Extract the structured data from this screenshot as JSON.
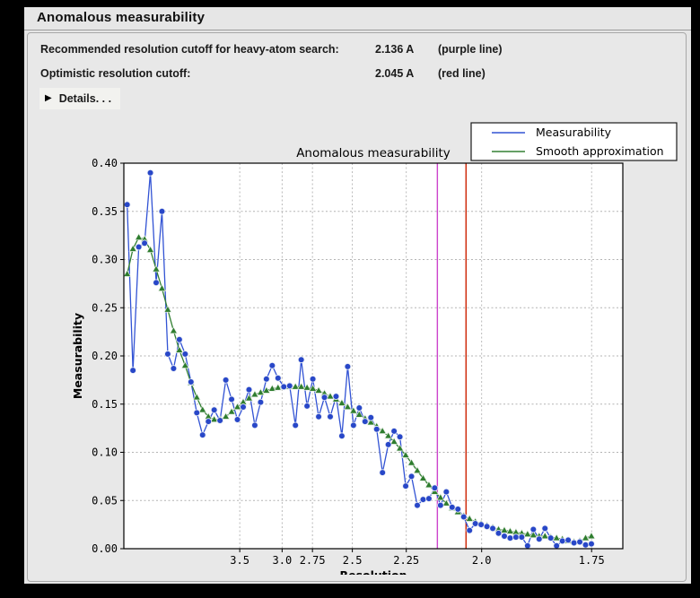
{
  "window": {
    "heading": "Anomalous measurability"
  },
  "info": {
    "rows": [
      {
        "label": "Recommended resolution cutoff for heavy-atom search:",
        "value": "2.136 A",
        "note": "(purple line)"
      },
      {
        "label": "Optimistic resolution cutoff:",
        "value": "2.045 A",
        "note": "(red line)"
      }
    ],
    "details": {
      "arrow": "▶",
      "label": "Details. . ."
    }
  },
  "colors": {
    "panel_bg": "#e6e6e6",
    "plot_bg": "#ffffff",
    "grid": "#b3b3b3",
    "measurability_line": "#3253d4",
    "measurability_marker": "#2847c8",
    "smooth_line": "#338033",
    "smooth_marker": "#2e7d2e",
    "purple_vline": "#cc44cc",
    "red_vline": "#cc2200",
    "frame": "#000000"
  },
  "chart_data": {
    "type": "line",
    "title": "Anomalous measurability",
    "xlabel": "Resolution",
    "ylabel": "Measurability",
    "x_axis_transform": "1/d^2",
    "x_ticks": [
      {
        "label": "3.5",
        "d": 3.5
      },
      {
        "label": "3.0",
        "d": 3.0
      },
      {
        "label": "2.75",
        "d": 2.75
      },
      {
        "label": "2.5",
        "d": 2.5
      },
      {
        "label": "2.25",
        "d": 2.25
      },
      {
        "label": "2.0",
        "d": 2.0
      },
      {
        "label": "1.75",
        "d": 1.75
      }
    ],
    "y_ticks": [
      "0.00",
      "0.05",
      "0.10",
      "0.15",
      "0.20",
      "0.25",
      "0.30",
      "0.35",
      "0.40"
    ],
    "ylim": [
      0.0,
      0.4
    ],
    "x_inv_d2_start": 0.00326,
    "x_inv_d2_step": 0.004039,
    "n_points": 81,
    "grid": true,
    "series": [
      {
        "name": "Measurability",
        "marker": "circle",
        "values": [
          0.357,
          0.185,
          0.313,
          0.317,
          0.39,
          0.276,
          0.35,
          0.202,
          0.187,
          0.217,
          0.202,
          0.173,
          0.141,
          0.118,
          0.132,
          0.144,
          0.133,
          0.175,
          0.155,
          0.134,
          0.147,
          0.165,
          0.128,
          0.152,
          0.176,
          0.19,
          0.177,
          0.168,
          0.169,
          0.128,
          0.196,
          0.148,
          0.176,
          0.137,
          0.157,
          0.137,
          0.158,
          0.117,
          0.189,
          0.128,
          0.146,
          0.132,
          0.136,
          0.124,
          0.079,
          0.108,
          0.122,
          0.116,
          0.065,
          0.075,
          0.045,
          0.051,
          0.052,
          0.063,
          0.045,
          0.059,
          0.043,
          0.041,
          0.033,
          0.019,
          0.026,
          0.025,
          0.023,
          0.021,
          0.016,
          0.013,
          0.011,
          0.012,
          0.012,
          0.003,
          0.02,
          0.01,
          0.021,
          0.011,
          0.003,
          0.008,
          0.009,
          0.006,
          0.007,
          0.004,
          0.005
        ]
      },
      {
        "name": "Smooth approximation",
        "marker": "triangle",
        "values": [
          0.285,
          0.311,
          0.323,
          0.321,
          0.31,
          0.29,
          0.27,
          0.248,
          0.226,
          0.206,
          0.19,
          0.172,
          0.157,
          0.144,
          0.137,
          0.134,
          0.134,
          0.137,
          0.142,
          0.147,
          0.152,
          0.156,
          0.16,
          0.162,
          0.164,
          0.166,
          0.167,
          0.168,
          0.168,
          0.168,
          0.168,
          0.167,
          0.166,
          0.164,
          0.161,
          0.158,
          0.155,
          0.151,
          0.147,
          0.143,
          0.139,
          0.135,
          0.131,
          0.127,
          0.122,
          0.117,
          0.111,
          0.104,
          0.097,
          0.089,
          0.081,
          0.073,
          0.066,
          0.059,
          0.053,
          0.047,
          0.042,
          0.038,
          0.034,
          0.031,
          0.028,
          0.026,
          0.024,
          0.022,
          0.02,
          0.019,
          0.018,
          0.017,
          0.016,
          0.015,
          0.014,
          0.013,
          0.013,
          0.012,
          0.011,
          0.01,
          0.008,
          0.007,
          0.008,
          0.011,
          0.013
        ]
      }
    ],
    "vlines": [
      {
        "d": 2.136,
        "meaning": "recommended cutoff",
        "color_key": "purple_vline"
      },
      {
        "d": 2.045,
        "meaning": "optimistic cutoff",
        "color_key": "red_vline"
      }
    ],
    "legend": {
      "position": "top-right",
      "entries": [
        "Measurability",
        "Smooth approximation"
      ]
    }
  }
}
